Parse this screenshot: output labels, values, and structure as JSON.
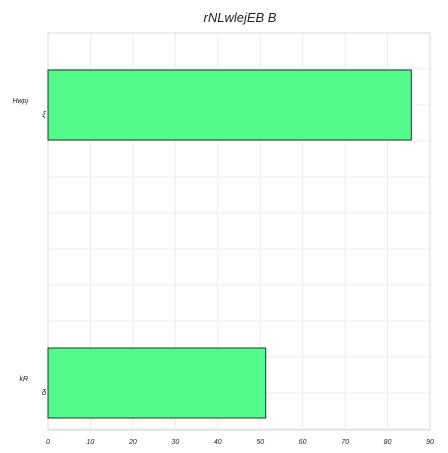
{
  "chart_data": {
    "type": "bar",
    "orientation": "horizontal",
    "title": "rNLwlejEB B",
    "xlabel": "",
    "ylabel": "",
    "categories": [
      "Hwpj",
      "kR"
    ],
    "category_markers": [
      "ξ",
      "δ"
    ],
    "values": [
      85.6,
      51.3
    ],
    "xlim": [
      0,
      90
    ],
    "x_ticks": [
      0,
      10,
      20,
      30,
      40,
      50,
      60,
      70,
      80,
      90
    ],
    "grid": true,
    "legend": "none",
    "colors": {
      "bar_fill": "#55fa8c",
      "bar_stroke": "#1a3a26",
      "grid": "#ececec",
      "frame": "#d9d9d9",
      "text": "#222222"
    }
  }
}
